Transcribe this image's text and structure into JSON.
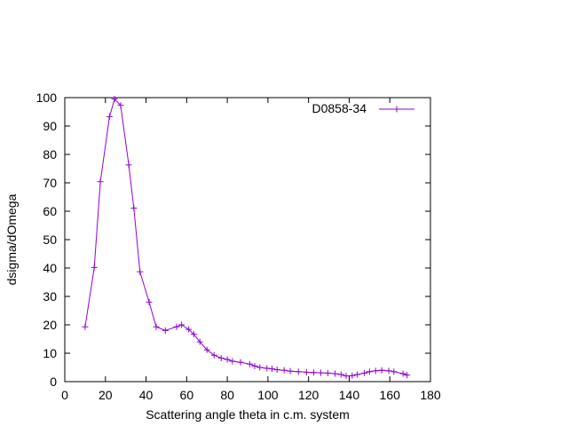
{
  "chart_data": {
    "type": "line",
    "xlabel": "Scattering angle theta in c.m. system",
    "ylabel": "dsigma/dOmega",
    "xlim": [
      0,
      180
    ],
    "ylim": [
      0,
      100
    ],
    "xticks": [
      "0",
      "20",
      "40",
      "60",
      "80",
      "100",
      "120",
      "140",
      "160",
      "180"
    ],
    "yticks": [
      "0",
      "10",
      "20",
      "30",
      "40",
      "50",
      "60",
      "70",
      "80",
      "90",
      "100"
    ],
    "grid": false,
    "legend_position": "top-right",
    "color": "#9400d3",
    "series": [
      {
        "name": "D0858-34",
        "marker": "plus",
        "x": [
          10,
          14.5,
          17.5,
          22,
          24.5,
          27.5,
          31.5,
          34,
          37,
          41.5,
          45,
          49.5,
          55,
          57.5,
          61,
          63.5,
          66.5,
          70,
          73.5,
          77,
          80,
          82.5,
          86.5,
          91,
          93.5,
          96,
          99.5,
          102,
          104.5,
          108,
          111,
          115,
          119,
          122.5,
          126,
          129.5,
          133,
          136,
          138.5,
          141.5,
          144,
          147.5,
          150,
          153,
          156,
          159.5,
          162,
          166.5,
          168.5
        ],
        "y": [
          19.3,
          40.2,
          70.4,
          93.3,
          99.5,
          97.3,
          76.3,
          61.1,
          38.7,
          28.0,
          19.3,
          18.0,
          19.3,
          20.0,
          18.4,
          16.7,
          14.0,
          11.2,
          9.3,
          8.3,
          7.8,
          7.2,
          6.8,
          6.2,
          5.5,
          5.0,
          4.7,
          4.5,
          4.2,
          4.0,
          3.7,
          3.5,
          3.3,
          3.2,
          3.1,
          3.0,
          2.8,
          2.5,
          2.0,
          2.1,
          2.5,
          3.0,
          3.5,
          3.8,
          4.0,
          3.8,
          3.5,
          2.8,
          2.3
        ]
      }
    ]
  }
}
